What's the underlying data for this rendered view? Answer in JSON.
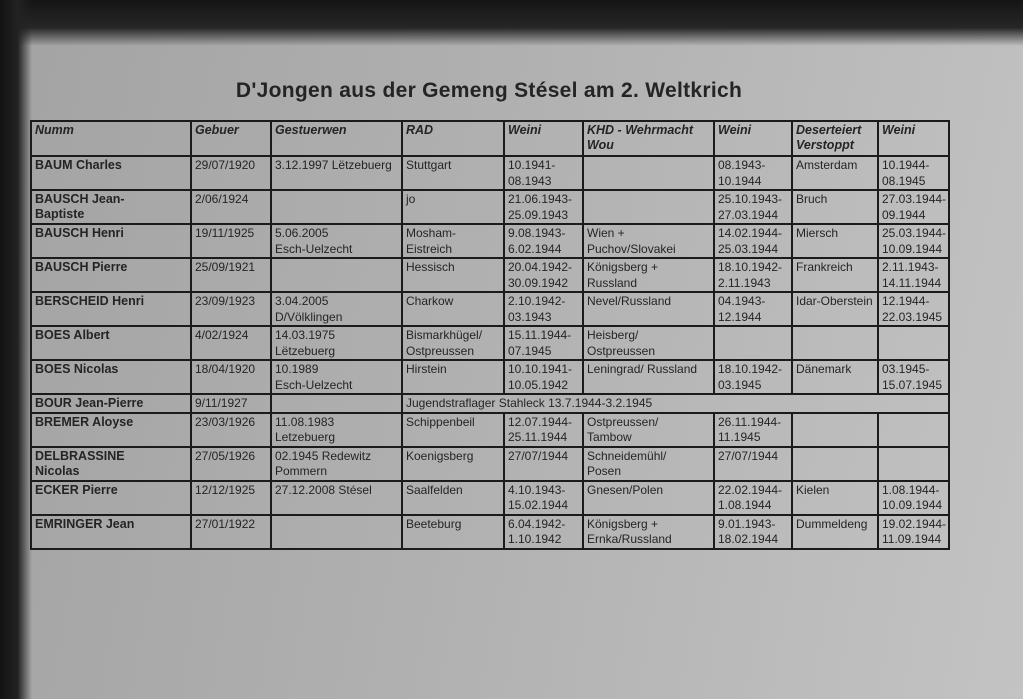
{
  "colors": {
    "ink": "#242424",
    "line": "#1b1b1b",
    "paper": "#b0b0b0",
    "edge": "#151515"
  },
  "document": {
    "title": "D'Jongen aus der Gemeng Stésel am 2. Weltkrich"
  },
  "table": {
    "columns": [
      "Numm",
      "Gebuer",
      "Gestuerwen",
      "RAD",
      "Weini",
      "KHD - Wehrmacht\nWou",
      "Weini",
      "Deserteiert\nVerstoppt",
      "Weini"
    ],
    "rows": [
      {
        "cells": [
          {
            "t": "BAUM Charles"
          },
          {
            "t": "29/07/1920"
          },
          {
            "t": "3.12.1997 Lëtzebuerg"
          },
          {
            "t": "Stuttgart"
          },
          {
            "t": "10.1941-\n08.1943"
          },
          {
            "t": ""
          },
          {
            "t": "08.1943-\n10.1944"
          },
          {
            "t": "Amsterdam"
          },
          {
            "t": "10.1944-\n08.1945"
          }
        ]
      },
      {
        "cells": [
          {
            "t": "BAUSCH Jean-\nBaptiste"
          },
          {
            "t": "2/06/1924"
          },
          {
            "t": ""
          },
          {
            "t": "jo"
          },
          {
            "t": "21.06.1943-\n25.09.1943"
          },
          {
            "t": ""
          },
          {
            "t": "25.10.1943-\n27.03.1944"
          },
          {
            "t": "Bruch"
          },
          {
            "t": "27.03.1944-\n09.1944"
          }
        ]
      },
      {
        "cells": [
          {
            "t": "BAUSCH Henri"
          },
          {
            "t": "19/11/1925"
          },
          {
            "t": "5.06.2005\nEsch-Uelzecht"
          },
          {
            "t": "Mosham-\nEistreich"
          },
          {
            "t": "9.08.1943-\n6.02.1944"
          },
          {
            "t": "Wien +\nPuchov/Slovakei"
          },
          {
            "t": "14.02.1944-\n25.03.1944"
          },
          {
            "t": "Miersch"
          },
          {
            "t": "25.03.1944-\n10.09.1944"
          }
        ]
      },
      {
        "cells": [
          {
            "t": "BAUSCH Pierre"
          },
          {
            "t": "25/09/1921"
          },
          {
            "t": ""
          },
          {
            "t": "Hessisch"
          },
          {
            "t": "20.04.1942-\n30.09.1942"
          },
          {
            "t": "Königsberg +\nRussland"
          },
          {
            "t": "18.10.1942-\n2.11.1943"
          },
          {
            "t": "Frankreich"
          },
          {
            "t": "2.11.1943-\n14.11.1944"
          }
        ]
      },
      {
        "cells": [
          {
            "t": "BERSCHEID Henri"
          },
          {
            "t": "23/09/1923"
          },
          {
            "t": "3.04.2005\nD/Völklingen"
          },
          {
            "t": "Charkow"
          },
          {
            "t": "2.10.1942-\n03.1943"
          },
          {
            "t": "Nevel/Russland"
          },
          {
            "t": "04.1943-\n12.1944"
          },
          {
            "t": "Idar-Oberstein"
          },
          {
            "t": "12.1944-\n22.03.1945"
          }
        ]
      },
      {
        "cells": [
          {
            "t": "BOES Albert"
          },
          {
            "t": "4/02/1924"
          },
          {
            "t": "14.03.1975\nLëtzebuerg"
          },
          {
            "t": "Bismarkhügel/\nOstpreussen"
          },
          {
            "t": "15.11.1944-\n07.1945"
          },
          {
            "t": "Heisberg/\nOstpreussen"
          },
          {
            "t": ""
          },
          {
            "t": ""
          },
          {
            "t": ""
          }
        ]
      },
      {
        "cells": [
          {
            "t": "BOES Nicolas"
          },
          {
            "t": "18/04/1920"
          },
          {
            "t": "10.1989\nEsch-Uelzecht"
          },
          {
            "t": "Hirstein"
          },
          {
            "t": "10.10.1941-\n10.05.1942"
          },
          {
            "t": "Leningrad/ Russland"
          },
          {
            "t": "18.10.1942-\n03.1945"
          },
          {
            "t": "Dänemark"
          },
          {
            "t": "03.1945-\n15.07.1945"
          }
        ]
      },
      {
        "h": 1,
        "cells": [
          {
            "t": "BOUR Jean-Pierre"
          },
          {
            "t": "9/11/1927"
          },
          {
            "t": ""
          },
          {
            "t": "Jugendstraflager Stahleck 13.7.1944-3.2.1945",
            "span": 6
          }
        ]
      },
      {
        "cells": [
          {
            "t": "BREMER Aloyse"
          },
          {
            "t": "23/03/1926"
          },
          {
            "t": "11.08.1983\nLetzebuerg"
          },
          {
            "t": "Schippenbeil"
          },
          {
            "t": "12.07.1944-\n25.11.1944"
          },
          {
            "t": "Ostpreussen/\nTambow"
          },
          {
            "t": "26.11.1944-\n11.1945"
          },
          {
            "t": ""
          },
          {
            "t": ""
          }
        ]
      },
      {
        "cells": [
          {
            "t": "DELBRASSINE\nNicolas"
          },
          {
            "t": "27/05/1926"
          },
          {
            "t": "02.1945 Redewitz\nPommern"
          },
          {
            "t": "Koenigsberg"
          },
          {
            "t": "27/07/1944"
          },
          {
            "t": "Schneidemühl/\nPosen"
          },
          {
            "t": "27/07/1944"
          },
          {
            "t": ""
          },
          {
            "t": ""
          }
        ]
      },
      {
        "cells": [
          {
            "t": "ECKER Pierre"
          },
          {
            "t": "12/12/1925"
          },
          {
            "t": "27.12.2008 Stésel"
          },
          {
            "t": "Saalfelden"
          },
          {
            "t": "4.10.1943-\n15.02.1944"
          },
          {
            "t": "Gnesen/Polen"
          },
          {
            "t": "22.02.1944-\n1.08.1944"
          },
          {
            "t": "Kielen"
          },
          {
            "t": "1.08.1944-\n10.09.1944"
          }
        ]
      },
      {
        "cells": [
          {
            "t": "EMRINGER Jean"
          },
          {
            "t": "27/01/1922"
          },
          {
            "t": ""
          },
          {
            "t": "Beeteburg"
          },
          {
            "t": "6.04.1942-\n1.10.1942"
          },
          {
            "t": "Königsberg +\nErnka/Russland"
          },
          {
            "t": "9.01.1943-\n18.02.1944"
          },
          {
            "t": "Dummeldeng"
          },
          {
            "t": "19.02.1944-\n11.09.1944"
          }
        ]
      }
    ]
  }
}
